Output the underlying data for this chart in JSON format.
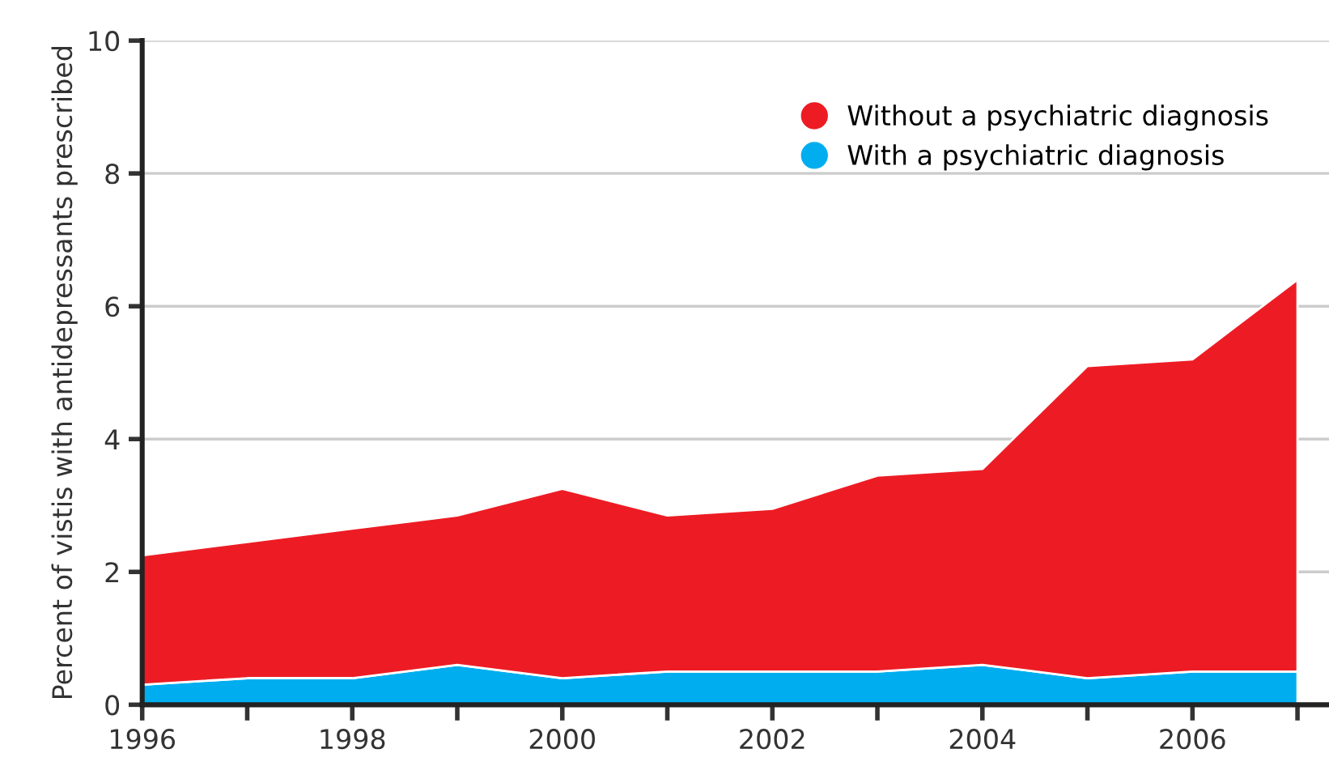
{
  "chart_data": {
    "type": "area",
    "stacked": true,
    "ylabel": "Percent of vistis with antidepressants prescribed",
    "x": [
      1996,
      1997,
      1998,
      1999,
      2000,
      2001,
      2002,
      2003,
      2004,
      2005,
      2006,
      2007
    ],
    "series": [
      {
        "name": "With a psychiatric diagnosis",
        "color": "#00aeef",
        "values": [
          0.3,
          0.4,
          0.4,
          0.6,
          0.4,
          0.5,
          0.5,
          0.5,
          0.6,
          0.4,
          0.5,
          0.5
        ]
      },
      {
        "name": "Without a psychiatric diagnosis",
        "color": "#ed1c24",
        "values": [
          1.95,
          2.05,
          2.25,
          2.25,
          2.85,
          2.35,
          2.45,
          2.95,
          2.95,
          4.7,
          4.7,
          5.9
        ]
      }
    ],
    "xlim": [
      1996,
      2007.3
    ],
    "xticks": [
      1996,
      {
        "value": 1997,
        "label": null
      },
      1998,
      {
        "value": 1999,
        "label": null
      },
      2000,
      {
        "value": 2001,
        "label": null
      },
      2002,
      {
        "value": 2003,
        "label": null
      },
      2004,
      {
        "value": 2005,
        "label": null
      },
      2006,
      {
        "value": 2007,
        "label": null
      }
    ],
    "ylim": [
      0,
      10
    ],
    "yticks": [
      0,
      2,
      4,
      6,
      8,
      10
    ],
    "grid": "y",
    "legend": "top right"
  }
}
